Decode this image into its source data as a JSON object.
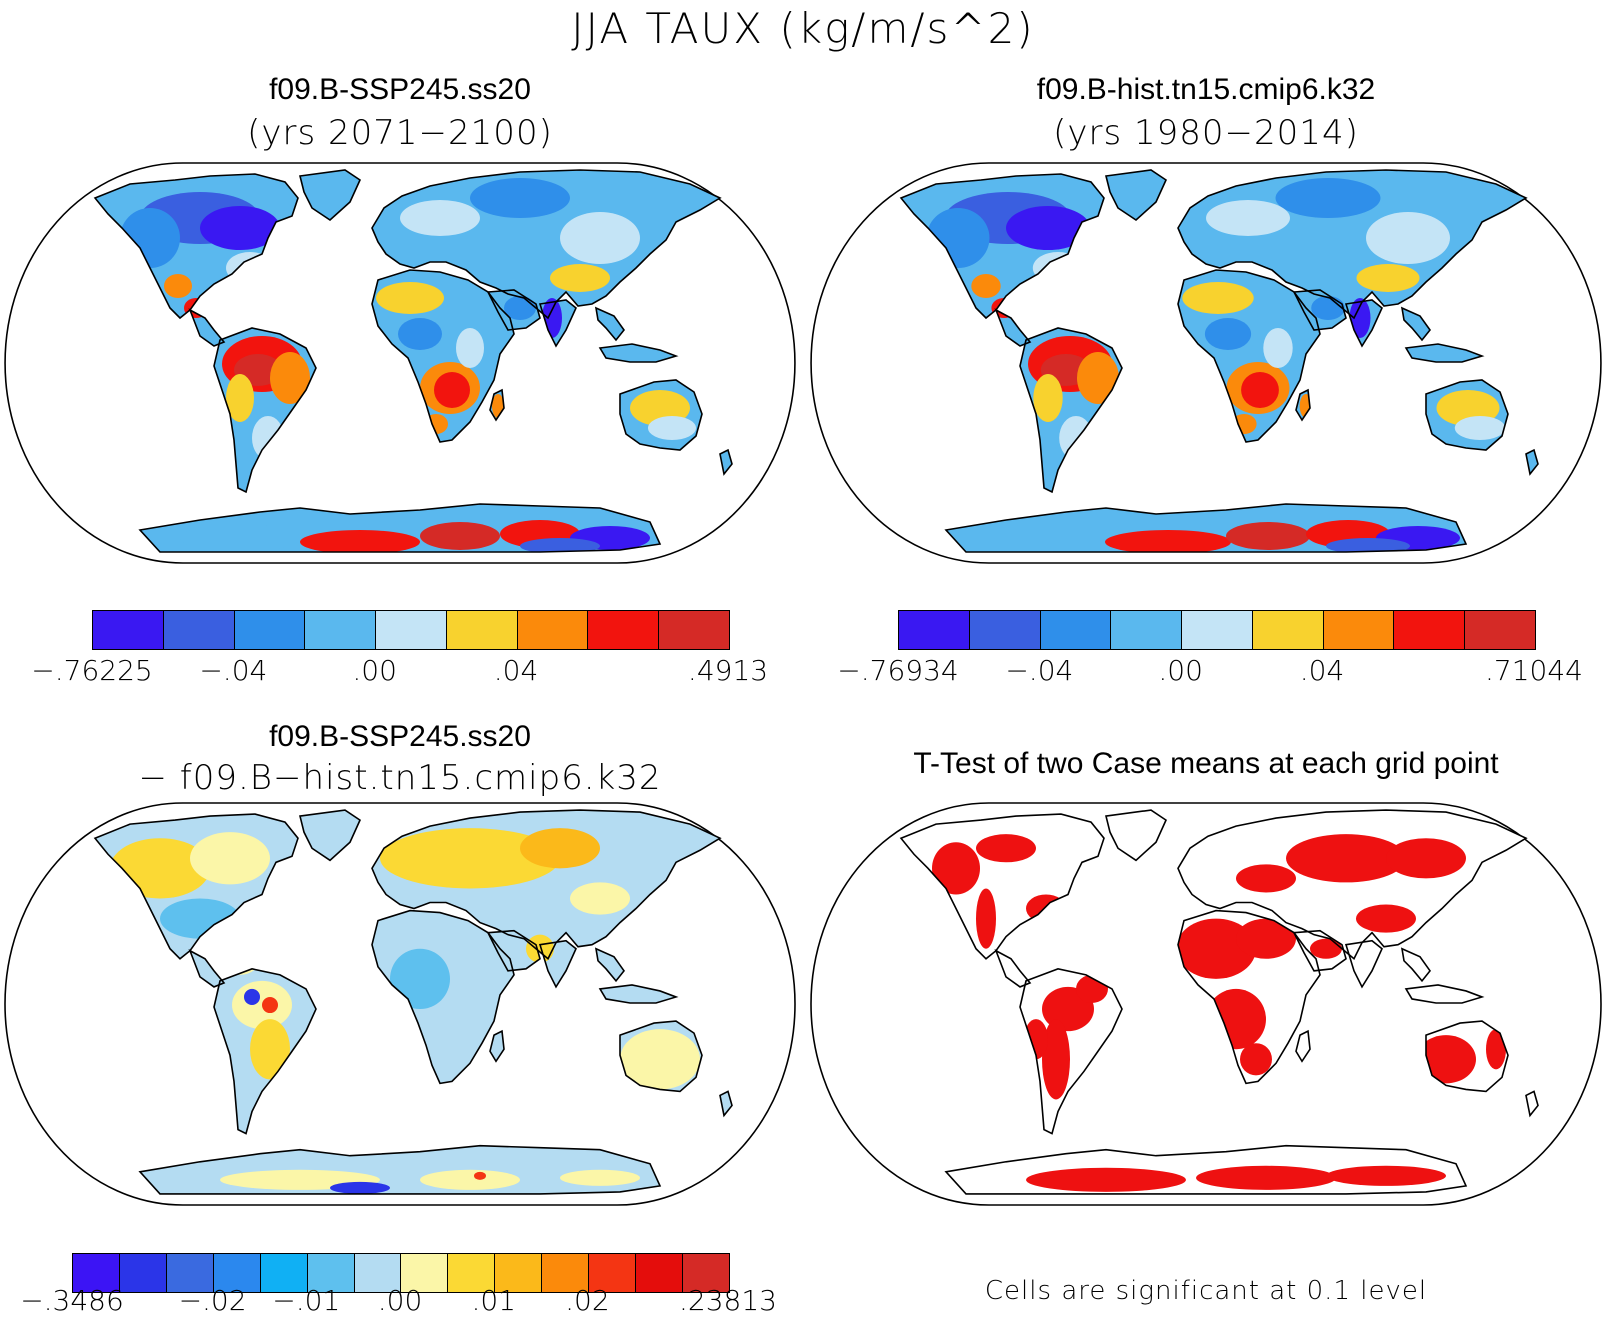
{
  "title": "JJA TAUX (kg/m/s^2)",
  "panels": [
    {
      "id": "future",
      "title": "f09.B-SSP245.ss20",
      "subtitle": "(yrs 2071−2100)",
      "colorbar": {
        "colors": [
          "#3a18f2",
          "#3a5fe0",
          "#2f8fea",
          "#5ab8ee",
          "#c4e4f6",
          "#f8d22e",
          "#fb8a0b",
          "#f2140e",
          "#d52a26"
        ],
        "ticks": [
          "−.76225",
          "−.04",
          ".00",
          ".04",
          ".4913"
        ]
      }
    },
    {
      "id": "historical",
      "title": "f09.B-hist.tn15.cmip6.k32",
      "subtitle": "(yrs 1980−2014)",
      "colorbar": {
        "colors": [
          "#3a18f2",
          "#3a5fe0",
          "#2f8fea",
          "#5ab8ee",
          "#c4e4f6",
          "#f8d22e",
          "#fb8a0b",
          "#f2140e",
          "#d52a26"
        ],
        "ticks": [
          "−.76934",
          "−.04",
          ".00",
          ".04",
          ".71044"
        ]
      }
    },
    {
      "id": "difference",
      "title": "f09.B-SSP245.ss20",
      "subtitle": "− f09.B−hist.tn15.cmip6.k32",
      "colorbar": {
        "colors": [
          "#3c14f5",
          "#2b35e8",
          "#3a6ae0",
          "#2b88ee",
          "#10b0f4",
          "#5ec0ee",
          "#b4dcf2",
          "#fbf6a8",
          "#fbd934",
          "#fbb91a",
          "#fb8a0b",
          "#f43513",
          "#e40d0c",
          "#d52a26"
        ],
        "ticks": [
          "−.3486",
          "−.02",
          "−.01",
          ".00",
          ".01",
          ".02",
          ".23813"
        ]
      }
    },
    {
      "id": "ttest",
      "title": "T-Test of two Case means at each grid point",
      "note": "Cells are significant at 0.1 level",
      "fill": "#ee1111"
    }
  ]
}
